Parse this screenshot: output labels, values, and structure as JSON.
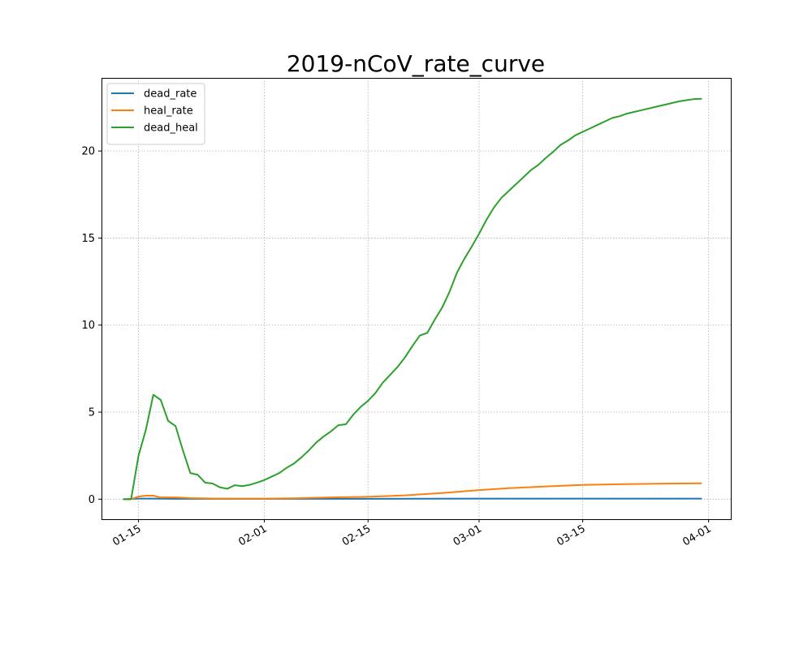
{
  "chart_data": {
    "type": "line",
    "title": "2019-nCoV_rate_curve",
    "xlabel": "",
    "ylabel": "",
    "x_axis_type": "date",
    "xlim": [
      "2020-01-10",
      "2020-04-04"
    ],
    "ylim": [
      -1.15,
      24.2
    ],
    "x_ticks": [
      {
        "date": "2020-01-15",
        "label": "01-15"
      },
      {
        "date": "2020-02-01",
        "label": "02-01"
      },
      {
        "date": "2020-02-15",
        "label": "02-15"
      },
      {
        "date": "2020-03-01",
        "label": "03-01"
      },
      {
        "date": "2020-03-15",
        "label": "03-15"
      },
      {
        "date": "2020-04-01",
        "label": "04-01"
      }
    ],
    "y_ticks": [
      0,
      5,
      10,
      15,
      20
    ],
    "grid": true,
    "grid_style": "dotted",
    "legend_position": "top-left",
    "series": [
      {
        "name": "dead_rate",
        "color": "#1f77b4",
        "points": [
          [
            "2020-01-13",
            0.0
          ],
          [
            "2020-01-15",
            0.03
          ],
          [
            "2020-01-17",
            0.03
          ],
          [
            "2020-01-20",
            0.02
          ],
          [
            "2020-01-25",
            0.02
          ],
          [
            "2020-02-01",
            0.02
          ],
          [
            "2020-02-15",
            0.02
          ],
          [
            "2020-03-01",
            0.03
          ],
          [
            "2020-03-15",
            0.03
          ],
          [
            "2020-03-31",
            0.03
          ]
        ]
      },
      {
        "name": "heal_rate",
        "color": "#ff7f0e",
        "points": [
          [
            "2020-01-13",
            0.0
          ],
          [
            "2020-01-14",
            0.0
          ],
          [
            "2020-01-15",
            0.15
          ],
          [
            "2020-01-16",
            0.2
          ],
          [
            "2020-01-17",
            0.2
          ],
          [
            "2020-01-18",
            0.1
          ],
          [
            "2020-01-20",
            0.1
          ],
          [
            "2020-01-22",
            0.06
          ],
          [
            "2020-01-25",
            0.04
          ],
          [
            "2020-01-28",
            0.03
          ],
          [
            "2020-02-01",
            0.03
          ],
          [
            "2020-02-05",
            0.05
          ],
          [
            "2020-02-10",
            0.1
          ],
          [
            "2020-02-15",
            0.14
          ],
          [
            "2020-02-20",
            0.22
          ],
          [
            "2020-02-25",
            0.35
          ],
          [
            "2020-03-01",
            0.52
          ],
          [
            "2020-03-05",
            0.63
          ],
          [
            "2020-03-10",
            0.73
          ],
          [
            "2020-03-15",
            0.82
          ],
          [
            "2020-03-20",
            0.86
          ],
          [
            "2020-03-25",
            0.89
          ],
          [
            "2020-03-31",
            0.91
          ]
        ]
      },
      {
        "name": "dead_heal",
        "color": "#2ca02c",
        "points": [
          [
            "2020-01-13",
            0.0
          ],
          [
            "2020-01-14",
            0.0
          ],
          [
            "2020-01-15",
            2.5
          ],
          [
            "2020-01-16",
            4.0
          ],
          [
            "2020-01-17",
            6.0
          ],
          [
            "2020-01-18",
            5.7
          ],
          [
            "2020-01-19",
            4.5
          ],
          [
            "2020-01-20",
            4.2
          ],
          [
            "2020-01-21",
            2.8
          ],
          [
            "2020-01-22",
            1.5
          ],
          [
            "2020-01-23",
            1.4
          ],
          [
            "2020-01-24",
            0.95
          ],
          [
            "2020-01-25",
            0.9
          ],
          [
            "2020-01-26",
            0.68
          ],
          [
            "2020-01-27",
            0.6
          ],
          [
            "2020-01-28",
            0.8
          ],
          [
            "2020-01-29",
            0.75
          ],
          [
            "2020-01-30",
            0.82
          ],
          [
            "2020-01-31",
            0.95
          ],
          [
            "2020-02-01",
            1.1
          ],
          [
            "2020-02-02",
            1.3
          ],
          [
            "2020-02-03",
            1.5
          ],
          [
            "2020-02-04",
            1.8
          ],
          [
            "2020-02-05",
            2.05
          ],
          [
            "2020-02-06",
            2.4
          ],
          [
            "2020-02-07",
            2.8
          ],
          [
            "2020-02-08",
            3.25
          ],
          [
            "2020-02-09",
            3.6
          ],
          [
            "2020-02-10",
            3.9
          ],
          [
            "2020-02-11",
            4.25
          ],
          [
            "2020-02-12",
            4.3
          ],
          [
            "2020-02-13",
            4.85
          ],
          [
            "2020-02-14",
            5.3
          ],
          [
            "2020-02-15",
            5.65
          ],
          [
            "2020-02-16",
            6.1
          ],
          [
            "2020-02-17",
            6.7
          ],
          [
            "2020-02-18",
            7.15
          ],
          [
            "2020-02-19",
            7.6
          ],
          [
            "2020-02-20",
            8.15
          ],
          [
            "2020-02-21",
            8.8
          ],
          [
            "2020-02-22",
            9.4
          ],
          [
            "2020-02-23",
            9.55
          ],
          [
            "2020-02-24",
            10.3
          ],
          [
            "2020-02-25",
            11.0
          ],
          [
            "2020-02-26",
            11.9
          ],
          [
            "2020-02-27",
            13.0
          ],
          [
            "2020-02-28",
            13.8
          ],
          [
            "2020-02-29",
            14.5
          ],
          [
            "2020-03-01",
            15.25
          ],
          [
            "2020-03-02",
            16.05
          ],
          [
            "2020-03-03",
            16.75
          ],
          [
            "2020-03-04",
            17.3
          ],
          [
            "2020-03-05",
            17.7
          ],
          [
            "2020-03-06",
            18.1
          ],
          [
            "2020-03-07",
            18.5
          ],
          [
            "2020-03-08",
            18.9
          ],
          [
            "2020-03-09",
            19.2
          ],
          [
            "2020-03-10",
            19.6
          ],
          [
            "2020-03-11",
            19.95
          ],
          [
            "2020-03-12",
            20.35
          ],
          [
            "2020-03-13",
            20.6
          ],
          [
            "2020-03-14",
            20.9
          ],
          [
            "2020-03-15",
            21.1
          ],
          [
            "2020-03-16",
            21.3
          ],
          [
            "2020-03-17",
            21.5
          ],
          [
            "2020-03-18",
            21.7
          ],
          [
            "2020-03-19",
            21.9
          ],
          [
            "2020-03-20",
            22.0
          ],
          [
            "2020-03-21",
            22.15
          ],
          [
            "2020-03-22",
            22.25
          ],
          [
            "2020-03-23",
            22.35
          ],
          [
            "2020-03-24",
            22.45
          ],
          [
            "2020-03-25",
            22.55
          ],
          [
            "2020-03-26",
            22.65
          ],
          [
            "2020-03-27",
            22.75
          ],
          [
            "2020-03-28",
            22.85
          ],
          [
            "2020-03-29",
            22.92
          ],
          [
            "2020-03-30",
            22.98
          ],
          [
            "2020-03-31",
            23.0
          ]
        ]
      }
    ]
  }
}
